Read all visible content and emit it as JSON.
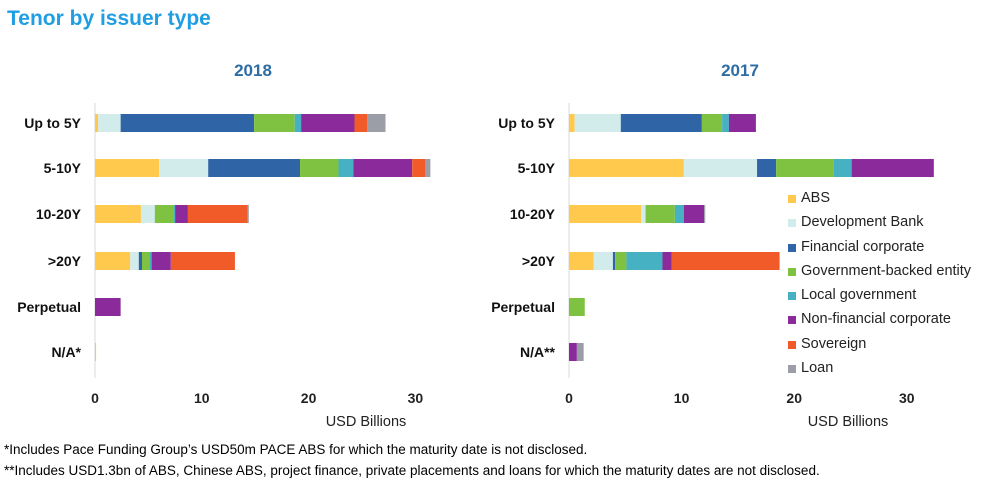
{
  "title": "Tenor by issuer type",
  "footnotes": [
    "*Includes Pace Funding Group’s USD50m PACE ABS for which the maturity date is not disclosed.",
    "**Includes USD1.3bn of ABS, Chinese ABS, project finance, private placements and loans for which the maturity dates are not disclosed."
  ],
  "legend": [
    {
      "name": "ABS",
      "color": "#ffc94d"
    },
    {
      "name": "Development Bank",
      "color": "#d2ecec"
    },
    {
      "name": "Financial corporate",
      "color": "#2f65a6"
    },
    {
      "name": "Government-backed entity",
      "color": "#7fc241"
    },
    {
      "name": "Local government",
      "color": "#46b1c2"
    },
    {
      "name": "Non-financial corporate",
      "color": "#8b2b9b"
    },
    {
      "name": "Sovereign",
      "color": "#f15a29"
    },
    {
      "name": "Loan",
      "color": "#9b9ea6"
    }
  ],
  "chart_data": [
    {
      "type": "bar",
      "orientation": "horizontal",
      "stacked": true,
      "title": "2018",
      "xlabel": "USD Billions",
      "xlim": [
        0,
        35
      ],
      "xticks": [
        0,
        10,
        20,
        30
      ],
      "categories": [
        "Up to 5Y",
        "5-10Y",
        "10-20Y",
        ">20Y",
        "Perpetual",
        "N/A*"
      ],
      "series": [
        {
          "name": "ABS",
          "values": [
            0.3,
            6.0,
            4.3,
            3.3,
            0,
            0.1
          ]
        },
        {
          "name": "Development Bank",
          "values": [
            2.1,
            4.6,
            1.3,
            0.8,
            0,
            0
          ]
        },
        {
          "name": "Financial corporate",
          "values": [
            12.5,
            8.6,
            0,
            0.3,
            0,
            0
          ]
        },
        {
          "name": "Government-backed entity",
          "values": [
            3.8,
            3.6,
            1.8,
            0.7,
            0,
            0
          ]
        },
        {
          "name": "Local government",
          "values": [
            0.6,
            1.4,
            0.1,
            0.2,
            0,
            0
          ]
        },
        {
          "name": "Non-financial corporate",
          "values": [
            5.0,
            5.5,
            1.2,
            1.8,
            2.4,
            0
          ]
        },
        {
          "name": "Sovereign",
          "values": [
            1.2,
            1.2,
            5.6,
            6.0,
            0,
            0
          ]
        },
        {
          "name": "Loan",
          "values": [
            1.7,
            0.5,
            0.1,
            0,
            0,
            0
          ]
        }
      ]
    },
    {
      "type": "bar",
      "orientation": "horizontal",
      "stacked": true,
      "title": "2017",
      "xlabel": "USD Billions",
      "xlim": [
        0,
        35
      ],
      "xticks": [
        0,
        10,
        20,
        30
      ],
      "categories": [
        "Up to 5Y",
        "5-10Y",
        "10-20Y",
        ">20Y",
        "Perpetual",
        "N/A**"
      ],
      "series": [
        {
          "name": "ABS",
          "values": [
            0.5,
            10.2,
            6.4,
            2.2,
            0,
            0
          ]
        },
        {
          "name": "Development Bank",
          "values": [
            4.1,
            6.5,
            0.4,
            1.7,
            0,
            0
          ]
        },
        {
          "name": "Financial corporate",
          "values": [
            7.2,
            1.7,
            0,
            0.2,
            0,
            0
          ]
        },
        {
          "name": "Government-backed entity",
          "values": [
            1.8,
            5.1,
            2.6,
            1.0,
            1.4,
            0
          ]
        },
        {
          "name": "Local government",
          "values": [
            0.6,
            1.6,
            0.8,
            3.2,
            0,
            0
          ]
        },
        {
          "name": "Non-financial corporate",
          "values": [
            2.4,
            7.3,
            1.8,
            0.8,
            0,
            0.7
          ]
        },
        {
          "name": "Sovereign",
          "values": [
            0,
            0,
            0,
            9.6,
            0,
            0
          ]
        },
        {
          "name": "Loan",
          "values": [
            0,
            0,
            0.1,
            0,
            0,
            0.6
          ]
        }
      ]
    }
  ]
}
